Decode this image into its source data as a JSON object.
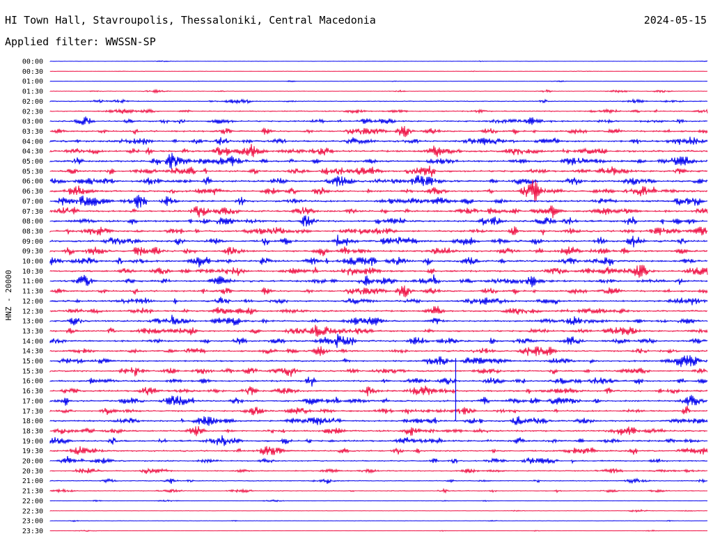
{
  "header": {
    "station": "HI Town Hall, Stavroupolis, Thessaloniki, Central Macedonia",
    "date": "2024-05-15",
    "filter": "Applied filter: WWSSN-SP"
  },
  "chart_data": {
    "type": "line",
    "ylabel": "HNZ - 20000",
    "row_labels": [
      "00:00",
      "00:30",
      "01:00",
      "01:30",
      "02:00",
      "02:30",
      "03:00",
      "03:30",
      "04:00",
      "04:30",
      "05:00",
      "05:30",
      "06:00",
      "06:30",
      "07:00",
      "07:30",
      "08:00",
      "08:30",
      "09:00",
      "09:30",
      "10:00",
      "10:30",
      "11:00",
      "11:30",
      "12:00",
      "12:30",
      "13:00",
      "13:30",
      "14:00",
      "14:30",
      "15:00",
      "15:30",
      "16:00",
      "16:30",
      "17:00",
      "17:30",
      "18:00",
      "18:30",
      "19:00",
      "19:30",
      "20:00",
      "20:30",
      "21:00",
      "21:30",
      "22:00",
      "22:30",
      "23:00",
      "23:30"
    ],
    "colors": [
      "#0000ee",
      "#ee1144"
    ],
    "noise_profile": [
      0.08,
      0.08,
      0.12,
      0.18,
      0.28,
      0.35,
      0.45,
      0.52,
      0.6,
      0.62,
      0.62,
      0.6,
      0.6,
      0.6,
      0.62,
      0.6,
      0.6,
      0.6,
      0.65,
      0.65,
      0.6,
      0.6,
      0.6,
      0.55,
      0.55,
      0.55,
      0.55,
      0.55,
      0.55,
      0.52,
      0.52,
      0.52,
      0.55,
      0.55,
      0.55,
      0.52,
      0.52,
      0.52,
      0.55,
      0.5,
      0.42,
      0.36,
      0.3,
      0.26,
      0.14,
      0.12,
      0.12,
      0.1
    ],
    "event": {
      "row": 30,
      "x_fraction": 0.617,
      "span_rows": 6
    }
  },
  "colors": {
    "background": "#ffffff",
    "text": "#000000"
  }
}
